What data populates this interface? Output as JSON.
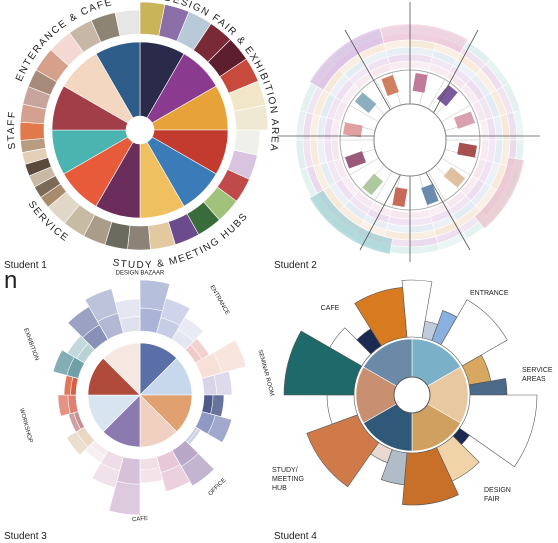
{
  "panels": [
    {
      "caption": "Student 1",
      "labels": [
        "ENTERANCE & CAFE",
        "DESIGN FAIR & EXHIBITION AREA",
        "STAFF",
        "SERVICE",
        "STUDY & MEETING HUBS"
      ]
    },
    {
      "caption": "Student 2",
      "labels": []
    },
    {
      "caption": "Student 3",
      "labels": [
        "DESIGN BAZAAR",
        "ENTRANCE",
        "SEMINAR ROOM",
        "OFFICE",
        "CAFE",
        "WORKSHOP",
        "EXHIBITION"
      ]
    },
    {
      "caption": "Student 4",
      "labels": [
        "CAFE",
        "ENTRANCE",
        "SERVICE AREAS",
        "DESIGN FAIR",
        "STUDY/MEETING HUB"
      ]
    }
  ],
  "stray_text": "n"
}
